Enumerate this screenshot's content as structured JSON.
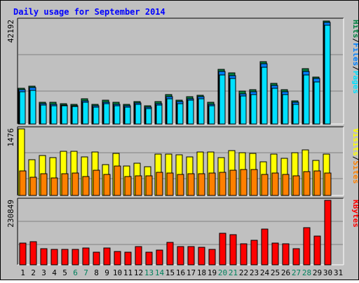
{
  "title": "Daily usage for September 2014",
  "colors": {
    "background": "#c0c0c0",
    "plot_bg": "#c0c0c0",
    "grid": "#808080",
    "hits": "#008040",
    "files": "#0080ff",
    "pages": "#00e0ff",
    "visits": "#ffff00",
    "sites": "#ff8000",
    "kbytes": "#ff0000",
    "title": "#0000ff",
    "weekend_label": "#00805c"
  },
  "chart_data": [
    {
      "type": "bar",
      "panel": "top",
      "title": "Daily usage for September 2014",
      "ylabel_parts": [
        "Pages",
        "Files",
        "Hits"
      ],
      "ymax_label": "42192",
      "ylim": [
        0,
        42192
      ],
      "grid": true,
      "categories": [
        "1",
        "2",
        "3",
        "4",
        "5",
        "6",
        "7",
        "8",
        "9",
        "10",
        "11",
        "12",
        "13",
        "14",
        "15",
        "16",
        "17",
        "18",
        "19",
        "20",
        "21",
        "22",
        "23",
        "24",
        "25",
        "26",
        "27",
        "28",
        "29",
        "30",
        "31"
      ],
      "series": [
        {
          "name": "Hits",
          "values": [
            14600,
            15300,
            8900,
            8700,
            8300,
            8100,
            10300,
            8100,
            9600,
            8700,
            7900,
            9200,
            7500,
            9000,
            11900,
            9700,
            11200,
            11800,
            8700,
            22300,
            20800,
            13300,
            13900,
            25400,
            16400,
            13900,
            9400,
            22500,
            19200,
            42000,
            null
          ]
        },
        {
          "name": "Files",
          "values": [
            14000,
            14700,
            8200,
            8000,
            7800,
            7500,
            9500,
            7400,
            8900,
            8000,
            7400,
            8600,
            6900,
            8400,
            11000,
            9000,
            10400,
            11000,
            8000,
            21500,
            19700,
            12300,
            13000,
            24600,
            15600,
            13000,
            8700,
            21500,
            18500,
            41400,
            null
          ]
        },
        {
          "name": "Pages",
          "values": [
            13000,
            13800,
            7700,
            7500,
            7300,
            7000,
            8800,
            6900,
            8200,
            7400,
            6800,
            8000,
            6400,
            7800,
            10300,
            8300,
            9700,
            10300,
            7400,
            20000,
            18500,
            11400,
            12100,
            23000,
            14500,
            12100,
            8100,
            20000,
            17200,
            40200,
            null
          ]
        }
      ]
    },
    {
      "type": "bar",
      "panel": "middle",
      "ylabel_parts": [
        "Sites",
        "Visits"
      ],
      "ymax_label": "1476",
      "ylim": [
        0,
        1476
      ],
      "grid": true,
      "categories": [
        "1",
        "2",
        "3",
        "4",
        "5",
        "6",
        "7",
        "8",
        "9",
        "10",
        "11",
        "12",
        "13",
        "14",
        "15",
        "16",
        "17",
        "18",
        "19",
        "20",
        "21",
        "22",
        "23",
        "24",
        "25",
        "26",
        "27",
        "28",
        "29",
        "30",
        "31"
      ],
      "series": [
        {
          "name": "Visits",
          "values": [
            1476,
            800,
            880,
            840,
            980,
            980,
            850,
            960,
            690,
            930,
            660,
            720,
            630,
            920,
            920,
            900,
            850,
            970,
            970,
            840,
            990,
            940,
            930,
            740,
            920,
            820,
            950,
            1010,
            780,
            920,
            null
          ]
        },
        {
          "name": "Sites",
          "values": [
            540,
            400,
            480,
            390,
            480,
            490,
            420,
            560,
            470,
            650,
            420,
            440,
            430,
            520,
            490,
            460,
            480,
            480,
            500,
            520,
            560,
            580,
            570,
            470,
            500,
            460,
            440,
            530,
            540,
            490,
            null
          ]
        }
      ]
    },
    {
      "type": "bar",
      "panel": "bottom",
      "ylabel_parts": [
        "KBytes"
      ],
      "ymax_label": "230849",
      "ylim": [
        0,
        230849
      ],
      "grid": true,
      "categories": [
        "1",
        "2",
        "3",
        "4",
        "5",
        "6",
        "7",
        "8",
        "9",
        "10",
        "11",
        "12",
        "13",
        "14",
        "15",
        "16",
        "17",
        "18",
        "19",
        "20",
        "21",
        "22",
        "23",
        "24",
        "25",
        "26",
        "27",
        "28",
        "29",
        "30",
        "31"
      ],
      "series": [
        {
          "name": "KBytes",
          "values": [
            77000,
            83000,
            58000,
            54000,
            54000,
            54000,
            60000,
            46000,
            60000,
            47000,
            45000,
            65000,
            46000,
            52000,
            80000,
            65000,
            64000,
            62000,
            56000,
            114000,
            109000,
            76000,
            89000,
            128000,
            79000,
            75000,
            58000,
            132000,
            104000,
            230849,
            null
          ]
        }
      ]
    }
  ],
  "x_axis": {
    "days": [
      "1",
      "2",
      "3",
      "4",
      "5",
      "6",
      "7",
      "8",
      "9",
      "10",
      "11",
      "12",
      "13",
      "14",
      "15",
      "16",
      "17",
      "18",
      "19",
      "20",
      "21",
      "22",
      "23",
      "24",
      "25",
      "26",
      "27",
      "28",
      "29",
      "30",
      "31"
    ],
    "weekend_days": [
      "6",
      "7",
      "13",
      "14",
      "20",
      "21",
      "27",
      "28"
    ]
  },
  "separators": [
    "/",
    "/"
  ]
}
